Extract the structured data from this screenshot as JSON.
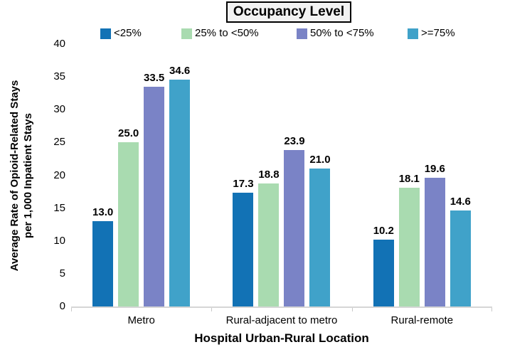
{
  "chart_data": {
    "type": "bar",
    "legend_title": "Occupancy Level",
    "categories": [
      "Metro",
      "Rural-adjacent to metro",
      "Rural-remote"
    ],
    "series": [
      {
        "name": "<25%",
        "color": "#1272b5",
        "values": [
          13.0,
          17.3,
          10.2
        ]
      },
      {
        "name": "25% to <50%",
        "color": "#a9dbb0",
        "values": [
          25.0,
          18.8,
          18.1
        ]
      },
      {
        "name": "50% to <75%",
        "color": "#7a83c6",
        "values": [
          33.5,
          23.9,
          19.6
        ]
      },
      {
        "name": ">=75%",
        "color": "#40a2c9",
        "values": [
          34.6,
          21.0,
          14.6
        ]
      }
    ],
    "xlabel": "Hospital Urban-Rural Location",
    "ylabel": "Average Rate of Opioid-Related Stays per 1,000 Inpatient Stays",
    "ylabel_lines": [
      "Average Rate of Opioid-Related Stays",
      "per 1,000 Inpatient Stays"
    ],
    "ylim": [
      0,
      40
    ],
    "yticks": [
      0,
      5,
      10,
      15,
      20,
      25,
      30,
      35,
      40
    ],
    "grid": false,
    "legend_position": "top",
    "value_labels_shown": true,
    "value_label_decimals": 1,
    "axis_line_color": "#d6d6d6"
  }
}
